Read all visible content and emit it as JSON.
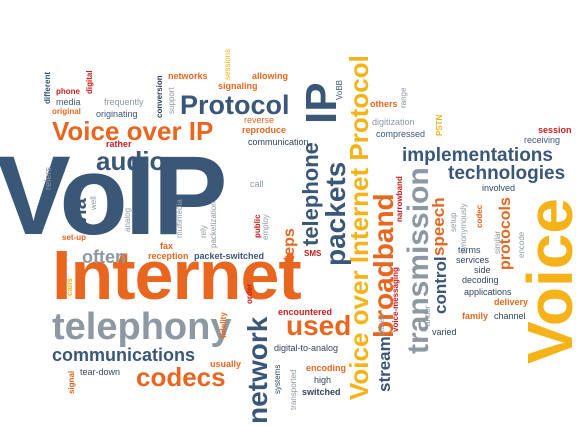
{
  "colors": {
    "blue": "#3b5777",
    "orange": "#e8661f",
    "yellow": "#f5b319",
    "gray": "#8d98a3",
    "red": "#c8201f",
    "dark": "#2f4660"
  },
  "words": {
    "voip": "VoIP",
    "internet": "Internet",
    "voice_big": "Voice",
    "telephony": "telephony",
    "voice_over_ip": "Voice over IP",
    "protocol": "Protocol",
    "ip": "IP",
    "voice_over_internet_protocol": "Voice over Internet Protocol",
    "broadband": "broadband",
    "transmission": "transmission",
    "implementations": "implementations",
    "technologies": "technologies",
    "packets": "packets",
    "telephone": "telephone",
    "audio": "audio",
    "codecs": "codecs",
    "communications": "communications",
    "network": "network",
    "used": "used",
    "often": "often",
    "via": "via",
    "stream": "stream",
    "speech": "speech",
    "control": "control",
    "protocols": "protocols",
    "steps": "steps",
    "signaling": "signaling",
    "allowing": "allowing",
    "networks": "networks",
    "sessions": "sessions",
    "session": "session",
    "receiving": "receiving",
    "digitization": "digitization",
    "compressed": "compressed",
    "communication": "communication",
    "reproduce": "reproduce",
    "reverse": "reverse",
    "frequently": "frequently",
    "originating": "originating",
    "media": "media",
    "phone": "phone",
    "digital": "digital",
    "different": "different",
    "original": "original",
    "rather": "rather",
    "refers": "refers",
    "well": "well",
    "analog": "analog",
    "multimedia": "multimedia",
    "rely": "rely",
    "packetization": "packetization",
    "call": "call",
    "public": "public",
    "employ": "employ",
    "fax": "fax",
    "reception": "reception",
    "packet_switched": "packet-switched",
    "set_up": "set-up",
    "calls": "calls",
    "fidelity": "fidelity",
    "order": "order",
    "sms": "SMS",
    "encountered": "encountered",
    "digital_to_analog": "digital-to-analog",
    "encoding": "encoding",
    "high": "high",
    "switched": "switched",
    "transported": "transported",
    "systems": "systems",
    "usually": "usually",
    "signal": "signal",
    "tear_down": "tear-down",
    "range": "range",
    "others": "others",
    "pstn": "PSTN",
    "vobb": "VoBB",
    "narrowband": "narrowband",
    "involved": "involved",
    "services": "services",
    "side": "side",
    "decoding": "decoding",
    "applications": "applications",
    "delivery": "delivery",
    "family": "family",
    "channel": "channel",
    "varied": "varied",
    "terms": "terms",
    "andor": "andor",
    "stereo": "stereo",
    "voice_messaging": "voice-messaging",
    "setup": "setup",
    "synonymously": "synonymously",
    "codec": "codec",
    "similar": "similar",
    "encode": "encode",
    "conversion": "conversion",
    "support": "support"
  }
}
